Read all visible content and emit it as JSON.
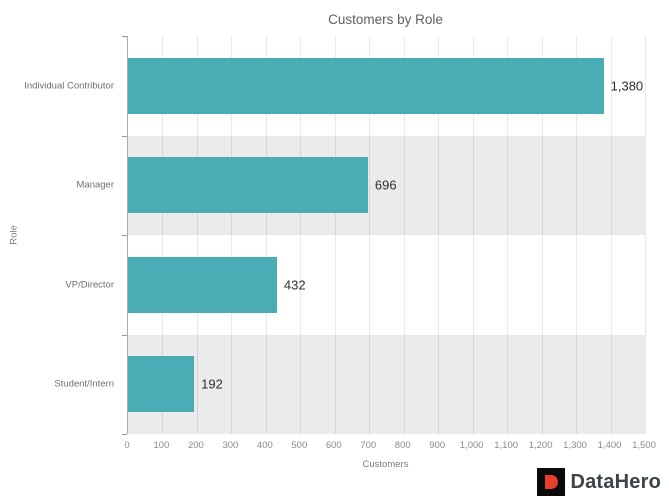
{
  "title": "Customers by Role",
  "chart_data": {
    "type": "bar",
    "orientation": "horizontal",
    "title": "Customers by Role",
    "categories": [
      "Individual Contributor",
      "Manager",
      "VP/Director",
      "Student/Intern"
    ],
    "values": [
      1380,
      696,
      432,
      192
    ],
    "value_labels": [
      "1,380",
      "696",
      "432",
      "192"
    ],
    "xlabel": "Customers",
    "ylabel": "Role",
    "xlim": [
      0,
      1500
    ],
    "xticks": [
      0,
      100,
      200,
      300,
      400,
      500,
      600,
      700,
      800,
      900,
      1000,
      1100,
      1200,
      1300,
      1400,
      1500
    ],
    "xtick_labels": [
      "0",
      "100",
      "200",
      "300",
      "400",
      "500",
      "600",
      "700",
      "800",
      "900",
      "1,000",
      "1,100",
      "1,200",
      "1,300",
      "1,400",
      "1,500"
    ],
    "bar_color": "#4aadb5",
    "band_colors": [
      "#ffffff",
      "#ebebeb"
    ],
    "grid": true,
    "legend": false
  },
  "logo": {
    "text": "DataHero",
    "square_color": "#0a0a0a",
    "mark_color": "#e8402a",
    "text_color": "#3c4349"
  }
}
